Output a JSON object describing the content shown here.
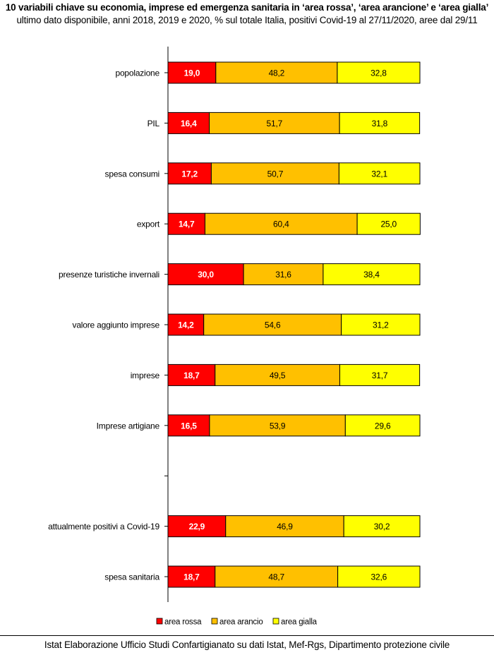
{
  "header": {
    "title": "10 variabili chiave su economia, imprese ed emergenza sanitaria in ‘area rossa’, ‘area arancione’ e ‘area gialla’",
    "subtitle": "ultimo dato disponibile, anni 2018, 2019 e 2020, % sul totale Italia, positivi Covid-19 al 27/11/2020, aree dal 29/11"
  },
  "footer": {
    "source": "Istat Elaborazione Ufficio Studi Confartigianato su dati Istat, Mef-Rgs, Dipartimento protezione civile"
  },
  "chart_data": {
    "type": "bar",
    "orientation": "horizontal",
    "stacked": "100%",
    "categories": [
      "popolazione",
      "PIL",
      "spesa consumi",
      "export",
      "presenze turistiche invernali",
      "valore aggiunto imprese",
      "imprese",
      "Imprese artigiane",
      "",
      "attualmente positivi a Covid-19",
      "spesa sanitaria"
    ],
    "series": [
      {
        "name": "area rossa",
        "color": "#ff0000",
        "values": [
          19.0,
          16.4,
          17.2,
          14.7,
          30.0,
          14.2,
          18.7,
          16.5,
          null,
          22.9,
          18.7
        ],
        "labels": [
          "19,0",
          "16,4",
          "17,2",
          "14,7",
          "30,0",
          "14,2",
          "18,7",
          "16,5",
          null,
          "22,9",
          "18,7"
        ]
      },
      {
        "name": "area arancio",
        "color": "#ffc000",
        "values": [
          48.2,
          51.7,
          50.7,
          60.4,
          31.6,
          54.6,
          49.5,
          53.9,
          null,
          46.9,
          48.7
        ],
        "labels": [
          "48,2",
          "51,7",
          "50,7",
          "60,4",
          "31,6",
          "54,6",
          "49,5",
          "53,9",
          null,
          "46,9",
          "48,7"
        ]
      },
      {
        "name": "area gialla",
        "color": "#ffff00",
        "values": [
          32.8,
          31.8,
          32.1,
          25.0,
          38.4,
          31.2,
          31.7,
          29.6,
          null,
          30.2,
          32.6
        ],
        "labels": [
          "32,8",
          "31,8",
          "32,1",
          "25,0",
          "38,4",
          "31,2",
          "31,7",
          "29,6",
          null,
          "30,2",
          "32,6"
        ]
      }
    ],
    "xlim": [
      0,
      100
    ],
    "legend": "bottom-center",
    "grid": false
  }
}
